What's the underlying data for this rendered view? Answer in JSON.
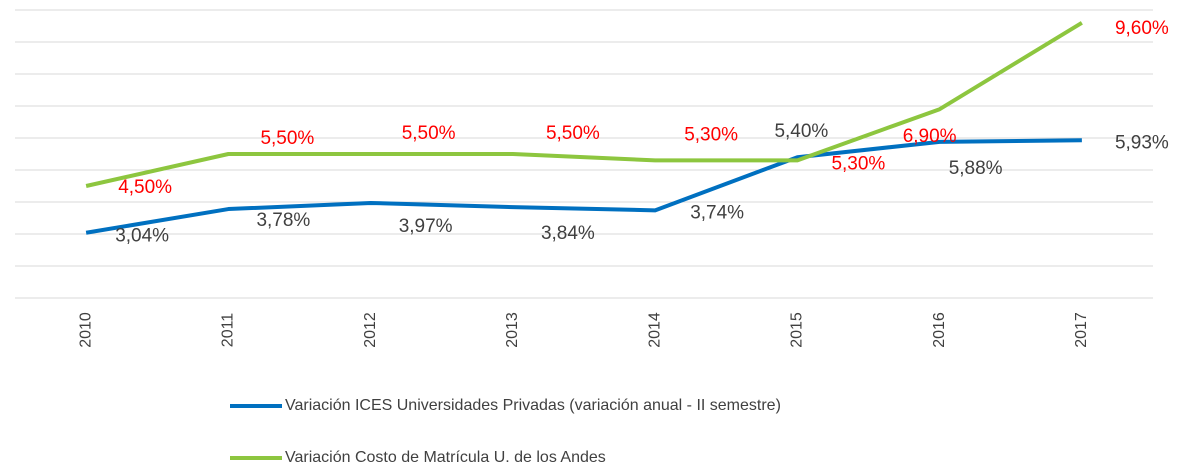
{
  "chart_data": {
    "type": "line",
    "categories": [
      "2010",
      "2011",
      "2012",
      "2013",
      "2014",
      "2015",
      "2016",
      "2017"
    ],
    "ylim": [
      1,
      10
    ],
    "yticks": [
      1,
      2,
      3,
      4,
      5,
      6,
      7,
      8,
      9,
      10
    ],
    "grid": true,
    "series": [
      {
        "name": "Variación ICES Universidades Privadas (variación anual - II semestre)",
        "color": "#0070c0",
        "values": [
          3.04,
          3.78,
          3.97,
          3.84,
          3.74,
          5.4,
          5.88,
          5.93
        ],
        "value_labels": [
          "3,04%",
          "3,78%",
          "3,97%",
          "3,84%",
          "3,74%",
          "5,40%",
          "5,88%",
          "5,93%"
        ],
        "label_color": "#404040"
      },
      {
        "name": "Variación Costo de Matrícula U. de los Andes",
        "color": "#8dc63f",
        "values": [
          4.5,
          5.5,
          5.5,
          5.5,
          5.3,
          5.3,
          6.9,
          9.6
        ],
        "value_labels": [
          "4,50%",
          "5,50%",
          "5,50%",
          "5,50%",
          "5,30%",
          "5,30%",
          "6,90%",
          "9,60%"
        ],
        "label_color": "#ff0000"
      }
    ]
  }
}
